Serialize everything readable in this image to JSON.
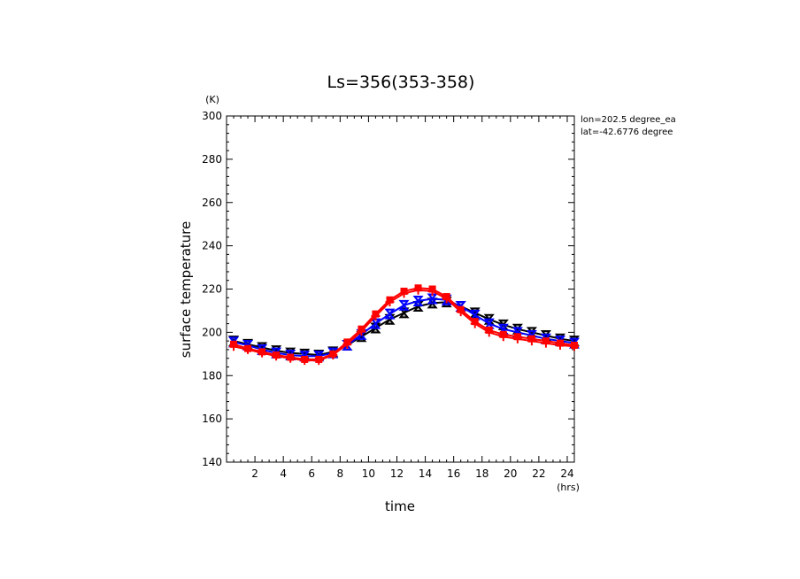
{
  "chart_data": {
    "type": "line",
    "title": "Ls=356(353-358)",
    "xlabel": "time",
    "ylabel": "surface temperature",
    "xunit": "(hrs)",
    "yunit": "(K)",
    "xlim": [
      0,
      24.5
    ],
    "ylim": [
      140,
      300
    ],
    "xticks": [
      2,
      4,
      6,
      8,
      10,
      12,
      14,
      16,
      18,
      20,
      22,
      24
    ],
    "yticks": [
      140,
      160,
      180,
      200,
      220,
      240,
      260,
      280,
      300
    ],
    "annotations": [
      "lon=202.5 degree_ea",
      "lat=-42.6776 degree"
    ],
    "x": [
      0.5,
      1.5,
      2.5,
      3.5,
      4.5,
      5.5,
      6.5,
      7.5,
      8.5,
      9.5,
      10.5,
      11.5,
      12.5,
      13.5,
      14.5,
      15.5,
      16.5,
      17.5,
      18.5,
      19.5,
      20.5,
      21.5,
      22.5,
      23.5,
      24.5
    ],
    "series": [
      {
        "color": "#000000",
        "marker": "x",
        "values": [
          196,
          194.5,
          193,
          191.5,
          190.5,
          190,
          189.5,
          191,
          194,
          198,
          202,
          206,
          209,
          212,
          213.5,
          214,
          212,
          209,
          206,
          203.5,
          201.5,
          200,
          198.5,
          197,
          196
        ]
      },
      {
        "color": "#0000ff",
        "marker": "x",
        "values": [
          195.5,
          194,
          192,
          190.5,
          189.5,
          189,
          189,
          190.5,
          194,
          199,
          204,
          208.5,
          212.5,
          214.5,
          215.5,
          215,
          212,
          208,
          204,
          201.5,
          200,
          198.5,
          197,
          196,
          195
        ]
      },
      {
        "color": "#ff0000",
        "marker": "square",
        "values": [
          194.5,
          192.5,
          191,
          189.5,
          188.5,
          187.5,
          187.5,
          190,
          195.5,
          201.5,
          208.5,
          215,
          219,
          220.5,
          220,
          216.5,
          210.5,
          205,
          201,
          199,
          198,
          197,
          196,
          195,
          194
        ]
      },
      {
        "color": "#ff0000",
        "marker": "plus",
        "values": [
          193.5,
          192,
          190.5,
          189,
          188,
          187,
          187,
          189.5,
          194.5,
          200.5,
          207.5,
          214,
          218,
          219.5,
          219,
          215.5,
          209.5,
          204,
          200,
          198,
          197,
          196,
          195,
          194,
          193.5
        ]
      }
    ]
  }
}
